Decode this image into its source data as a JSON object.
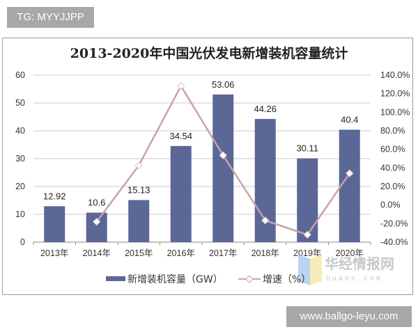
{
  "watermarks": {
    "top_tag": "TG: MYYJJPP",
    "bottom_tag": "www.ballgo-leyu.com",
    "logo_cn": "华经情报网",
    "logo_en": "huaon.com"
  },
  "chart_data": {
    "type": "bar+line",
    "title": "2013-2020年中国光伏发电新增装机容量统计",
    "categories": [
      "2013年",
      "2014年",
      "2015年",
      "2016年",
      "2017年",
      "2018年",
      "2019年",
      "2020年"
    ],
    "series": [
      {
        "name": "新增装机容量（GW）",
        "type": "bar",
        "axis": "left",
        "color": "#5b6797",
        "values": [
          12.92,
          10.6,
          15.13,
          34.54,
          53.06,
          44.26,
          30.11,
          40.4
        ],
        "labels": [
          "12.92",
          "10.6",
          "15.13",
          "34.54",
          "53.06",
          "44.26",
          "30.11",
          "40.4"
        ]
      },
      {
        "name": "增速（%）",
        "type": "line",
        "axis": "right",
        "color": "#c9a1a8",
        "marker": "diamond-open",
        "values": [
          null,
          -18.0,
          42.7,
          128.3,
          53.6,
          -16.6,
          -32.0,
          34.2
        ]
      }
    ],
    "left_axis": {
      "min": 0,
      "max": 60,
      "ticks": [
        "0",
        "10",
        "20",
        "30",
        "40",
        "50",
        "60"
      ]
    },
    "right_axis": {
      "min": -40,
      "max": 140,
      "ticks": [
        "-40.0%",
        "-20.0%",
        "0.0%",
        "20.0%",
        "40.0%",
        "60.0%",
        "80.0%",
        "100.0%",
        "120.0%",
        "140.0%"
      ]
    },
    "grid": true,
    "legend_position": "bottom",
    "xlabel": "",
    "ylabel": ""
  },
  "legend": {
    "bar_label": "新增装机容量（GW）",
    "line_label": "增速（%）"
  }
}
